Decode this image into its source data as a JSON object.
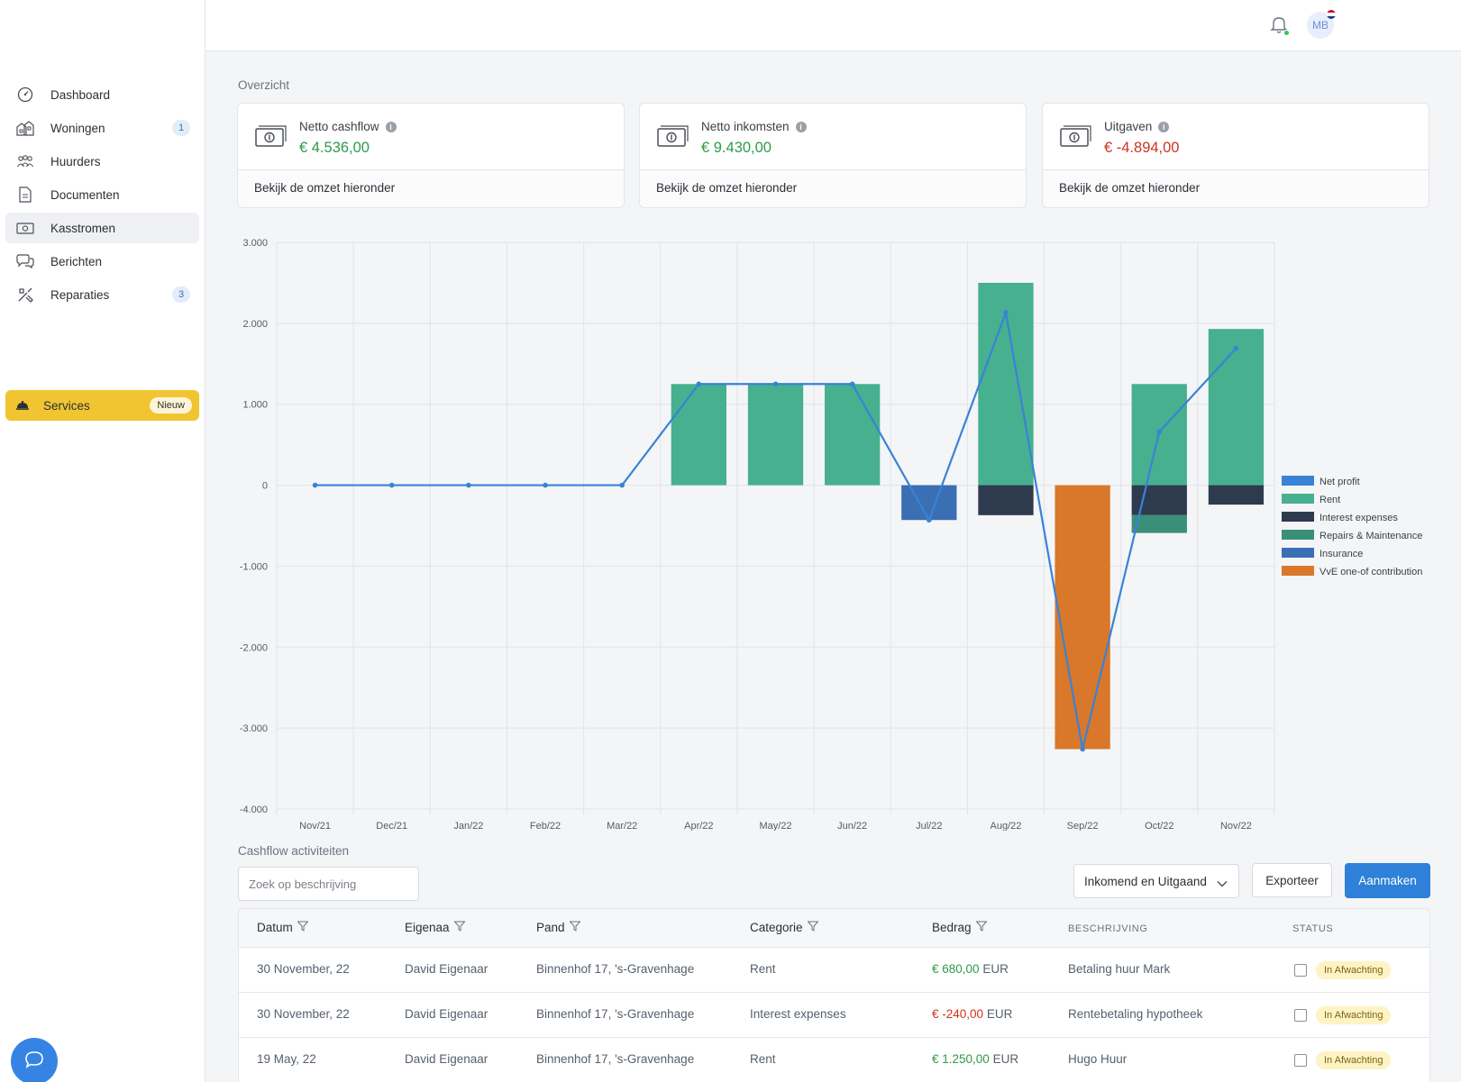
{
  "sidebar": {
    "items": [
      {
        "label": "Dashboard",
        "icon": "dashboard-icon",
        "badge": "",
        "active": false
      },
      {
        "label": "Woningen",
        "icon": "houses-icon",
        "badge": "1",
        "active": false
      },
      {
        "label": "Huurders",
        "icon": "tenants-icon",
        "badge": "",
        "active": false
      },
      {
        "label": "Documenten",
        "icon": "document-icon",
        "badge": "",
        "active": false
      },
      {
        "label": "Kasstromen",
        "icon": "cashflow-icon",
        "badge": "",
        "active": true
      },
      {
        "label": "Berichten",
        "icon": "messages-icon",
        "badge": "",
        "active": false
      },
      {
        "label": "Reparaties",
        "icon": "tools-icon",
        "badge": "3",
        "active": false
      }
    ],
    "services": {
      "label": "Services",
      "badge": "Nieuw",
      "icon": "service-bell-icon"
    }
  },
  "topbar": {
    "avatar_initials": "MB",
    "notification_icon": "bell-icon"
  },
  "overview": {
    "title": "Overzicht",
    "cards": [
      {
        "label": "Netto cashflow",
        "value": "€ 4.536,00",
        "tone": "positive",
        "footer": "Bekijk de omzet hieronder"
      },
      {
        "label": "Netto inkomsten",
        "value": "€ 9.430,00",
        "tone": "positive",
        "footer": "Bekijk de omzet hieronder"
      },
      {
        "label": "Uitgaven",
        "value": "€ -4.894,00",
        "tone": "negative",
        "footer": "Bekijk de omzet hieronder"
      }
    ]
  },
  "colors": {
    "accent": "#2f80d8",
    "positive": "#2f9a47",
    "negative": "#d1321f",
    "services": "#f1c531"
  },
  "chart_data": {
    "type": "bar",
    "stacked": true,
    "categories": [
      "Nov/21",
      "Dec/21",
      "Jan/22",
      "Feb/22",
      "Mar/22",
      "Apr/22",
      "May/22",
      "Jun/22",
      "Jul/22",
      "Aug/22",
      "Sep/22",
      "Oct/22",
      "Nov/22"
    ],
    "ylim": [
      -4000,
      3000
    ],
    "yticks": [
      3000,
      2000,
      1000,
      0,
      -1000,
      -2000,
      -3000,
      -4000
    ],
    "ytick_labels": [
      "3.000",
      "2.000",
      "1.000",
      "0",
      "-1.000",
      "-2.000",
      "-3.000",
      "-4.000"
    ],
    "grid": true,
    "legend_position": "right",
    "series": [
      {
        "name": "Rent",
        "color": "#47b08e",
        "values": [
          0,
          0,
          0,
          0,
          0,
          1250,
          1250,
          1250,
          0,
          2500,
          0,
          1250,
          1930
        ]
      },
      {
        "name": "Interest expenses",
        "color": "#2e3a4e",
        "values": [
          0,
          0,
          0,
          0,
          0,
          0,
          0,
          0,
          0,
          -370,
          0,
          -370,
          -240
        ]
      },
      {
        "name": "Repairs & Maintenance",
        "color": "#3a8f78",
        "values": [
          0,
          0,
          0,
          0,
          0,
          0,
          0,
          0,
          0,
          0,
          0,
          -220,
          0
        ]
      },
      {
        "name": "Insurance",
        "color": "#3a6fb4",
        "values": [
          0,
          0,
          0,
          0,
          0,
          0,
          0,
          0,
          -430,
          0,
          0,
          0,
          0
        ]
      },
      {
        "name": "VvE one-of contribution",
        "color": "#d9782a",
        "values": [
          0,
          0,
          0,
          0,
          0,
          0,
          0,
          0,
          0,
          0,
          -3260,
          0,
          0
        ]
      }
    ],
    "line": {
      "name": "Net profit",
      "color": "#3a82d6",
      "values": [
        0,
        0,
        0,
        0,
        0,
        1250,
        1250,
        1250,
        -430,
        2130,
        -3260,
        660,
        1690
      ]
    }
  },
  "activities": {
    "title": "Cashflow activiteiten",
    "search_placeholder": "Zoek op beschrijving",
    "filter_value": "Inkomend en Uitgaand",
    "export_label": "Exporteer",
    "create_label": "Aanmaken",
    "columns": [
      "Datum",
      "Eigenaa",
      "Pand",
      "Categorie",
      "Bedrag",
      "BESCHRIJVING",
      "STATUS"
    ],
    "rows": [
      {
        "date": "30 November, 22",
        "owner": "David Eigenaar",
        "property": "Binnenhof 17, 's-Gravenhage",
        "category": "Rent",
        "amount": "€ 680,00",
        "currency": "EUR",
        "tone": "pos",
        "description": "Betaling huur Mark",
        "status": "In Afwachting"
      },
      {
        "date": "30 November, 22",
        "owner": "David Eigenaar",
        "property": "Binnenhof 17, 's-Gravenhage",
        "category": "Interest expenses",
        "amount": "€ -240,00",
        "currency": "EUR",
        "tone": "neg",
        "description": "Rentebetaling hypotheek",
        "status": "In Afwachting"
      },
      {
        "date": "19 May, 22",
        "owner": "David Eigenaar",
        "property": "Binnenhof 17, 's-Gravenhage",
        "category": "Rent",
        "amount": "€ 1.250,00",
        "currency": "EUR",
        "tone": "pos",
        "description": "Hugo Huur",
        "status": "In Afwachting"
      }
    ]
  }
}
